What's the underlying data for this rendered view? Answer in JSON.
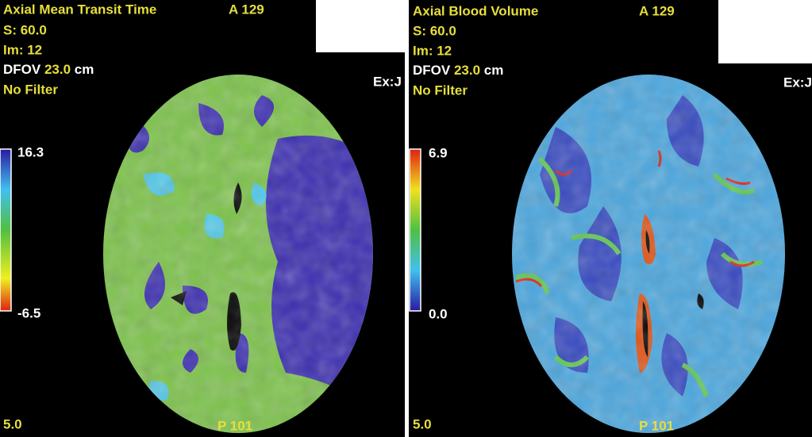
{
  "panels": [
    {
      "title": "Axial Mean Transit Time",
      "anterior": "A 129",
      "slice": "S: 60.0",
      "image": "Im: 12",
      "dfov_label": "DFOV",
      "dfov_value": "23.0",
      "dfov_unit": "cm",
      "filter": "No Filter",
      "exam": "Ex:J",
      "scale_max": "16.3",
      "scale_min": "-6.5",
      "window": "5.0",
      "posterior": "P 101"
    },
    {
      "title": "Axial Blood Volume",
      "anterior": "A 129",
      "slice": "S: 60.0",
      "image": "Im: 12",
      "dfov_label": "DFOV",
      "dfov_value": "23.0",
      "dfov_unit": "cm",
      "filter": "No Filter",
      "exam": "Ex:J",
      "scale_max": "6.9",
      "scale_min": "0.0",
      "window": "5.0",
      "posterior": "P 101"
    }
  ]
}
